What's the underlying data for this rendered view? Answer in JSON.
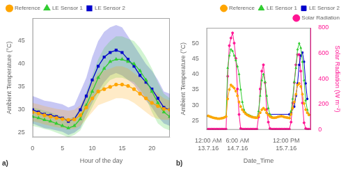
{
  "chart_data": [
    {
      "type": "line",
      "x": [
        0,
        1,
        2,
        3,
        4,
        5,
        6,
        7,
        8,
        9,
        10,
        11,
        12,
        13,
        14,
        15,
        16,
        17,
        18,
        19,
        20,
        21,
        22,
        23
      ],
      "series": [
        {
          "name": "Reference",
          "color": "#FFA500",
          "marker": "circle",
          "values": [
            29.5,
            29.2,
            28.8,
            28.5,
            28.2,
            28.0,
            27.8,
            27.9,
            28.8,
            30.5,
            32.5,
            34.0,
            34.5,
            35.0,
            35.5,
            35.5,
            35.2,
            34.5,
            33.5,
            32.5,
            31.5,
            30.8,
            30.2,
            30.0
          ],
          "p25": [
            27.5,
            27.2,
            26.8,
            26.5,
            26.2,
            26.0,
            25.8,
            25.8,
            26.5,
            28.0,
            29.5,
            31.0,
            31.5,
            32.0,
            32.5,
            32.5,
            32.2,
            31.5,
            30.5,
            29.5,
            28.5,
            28.0,
            27.8,
            27.8
          ],
          "p75": [
            31.5,
            31.2,
            30.8,
            30.5,
            30.2,
            30.0,
            29.8,
            30.0,
            31.0,
            33.5,
            36.0,
            38.0,
            38.5,
            39.0,
            39.5,
            39.5,
            39.0,
            38.0,
            37.0,
            36.0,
            34.5,
            33.5,
            32.5,
            32.0
          ]
        },
        {
          "name": "LE Sensor 1",
          "color": "#32CD32",
          "marker": "triangle",
          "values": [
            28.5,
            28.2,
            27.8,
            27.5,
            27.0,
            26.5,
            26.0,
            26.5,
            28.0,
            31.0,
            34.0,
            37.0,
            39.0,
            40.5,
            41.0,
            41.0,
            40.5,
            40.0,
            38.5,
            36.5,
            34.0,
            31.5,
            29.5,
            28.5
          ],
          "p25": [
            26.5,
            26.2,
            25.8,
            25.5,
            25.0,
            24.5,
            24.0,
            24.5,
            25.5,
            28.0,
            30.5,
            33.0,
            35.0,
            36.5,
            37.0,
            37.0,
            36.5,
            36.0,
            34.5,
            32.5,
            29.5,
            27.0,
            26.0,
            25.5
          ],
          "p75": [
            30.5,
            30.2,
            29.8,
            29.5,
            29.0,
            28.5,
            28.0,
            28.5,
            30.5,
            34.0,
            37.5,
            41.0,
            43.5,
            45.0,
            46.0,
            46.0,
            45.5,
            45.0,
            43.5,
            41.5,
            39.0,
            36.0,
            33.5,
            32.5
          ]
        },
        {
          "name": "LE Sensor 2",
          "color": "#0000CC",
          "marker": "square",
          "values": [
            30.0,
            29.5,
            29.0,
            28.8,
            28.5,
            28.2,
            27.5,
            28.0,
            30.0,
            33.0,
            36.5,
            39.5,
            41.5,
            42.5,
            43.0,
            42.5,
            41.0,
            39.5,
            37.5,
            36.0,
            34.5,
            32.5,
            30.5,
            30.0
          ],
          "p25": [
            27.0,
            26.5,
            26.0,
            25.8,
            25.5,
            25.2,
            24.5,
            25.0,
            26.0,
            29.0,
            31.5,
            34.0,
            36.0,
            37.5,
            38.0,
            37.5,
            36.5,
            35.5,
            33.5,
            32.0,
            30.5,
            28.5,
            27.0,
            26.5
          ],
          "p75": [
            33.0,
            32.5,
            32.0,
            31.8,
            31.5,
            31.2,
            30.5,
            31.0,
            34.0,
            37.0,
            41.5,
            45.0,
            47.0,
            48.0,
            48.5,
            48.0,
            46.0,
            44.0,
            42.0,
            40.0,
            38.5,
            36.5,
            34.0,
            33.5
          ]
        }
      ],
      "xlim": [
        0,
        23
      ],
      "xticks": [
        0,
        5,
        10,
        15,
        20
      ],
      "ylim": [
        24,
        50
      ],
      "yticks": [
        25,
        30,
        35,
        40,
        45
      ],
      "xlabel": "Hour of the day",
      "ylabel": "Ambient Temperature (°C)",
      "legend": "upper left",
      "grid": false,
      "annotations": [
        "a)"
      ]
    },
    {
      "type": "line",
      "x": [
        0,
        1,
        2,
        3,
        4,
        5,
        6,
        7,
        8,
        9,
        10,
        11,
        12,
        13,
        14,
        15,
        16,
        17,
        18,
        19,
        20,
        21,
        22,
        23,
        24,
        25,
        26,
        27,
        28,
        29,
        30,
        31,
        32,
        33,
        34,
        35,
        36,
        37,
        38,
        39,
        40,
        41,
        42,
        43,
        44,
        45,
        46,
        47,
        48,
        49,
        50,
        51,
        52,
        53,
        54,
        55,
        56,
        57,
        58,
        59,
        60,
        61,
        62
      ],
      "series": [
        {
          "name": "Reference",
          "color": "#FFA500",
          "marker": "circle",
          "values": [
            26.5,
            26.3,
            26.1,
            25.9,
            25.8,
            25.7,
            25.6,
            25.6,
            25.7,
            25.8,
            26.0,
            26.3,
            32.0,
            35.0,
            36.5,
            36.0,
            35.5,
            34.5,
            33.0,
            31.0,
            29.5,
            28.5,
            27.8,
            27.2,
            26.8,
            26.5,
            26.3,
            26.1,
            26.0,
            25.9,
            25.9,
            26.5,
            27.5,
            28.5,
            29.0,
            28.5,
            27.5,
            26.8,
            26.3,
            26.0,
            25.9,
            25.9,
            26.0,
            26.2,
            26.3,
            26.4,
            26.3,
            26.1,
            26.0,
            25.9,
            25.8,
            27.0,
            29.0,
            31.0,
            33.5,
            36.5,
            37.0,
            36.0,
            33.5,
            30.5,
            28.5,
            27.5,
            26.8
          ]
        },
        {
          "name": "LE Sensor 1",
          "color": "#32CD32",
          "marker": "triangle",
          "values": [
            26.5,
            26.3,
            26.1,
            25.9,
            25.8,
            25.7,
            25.6,
            25.6,
            25.7,
            25.8,
            26.0,
            26.3,
            42.0,
            46.0,
            48.0,
            47.5,
            46.0,
            44.5,
            42.5,
            40.0,
            35.0,
            31.0,
            28.5,
            27.5,
            27.0,
            26.8,
            26.5,
            26.3,
            26.1,
            26.0,
            25.9,
            28.0,
            33.0,
            38.0,
            40.0,
            37.5,
            33.0,
            29.0,
            27.0,
            26.3,
            25.9,
            25.9,
            26.0,
            26.2,
            26.3,
            26.4,
            26.3,
            26.1,
            26.0,
            25.9,
            25.8,
            28.0,
            32.0,
            37.5,
            42.0,
            48.0,
            50.0,
            48.5,
            44.0,
            38.0,
            31.5,
            28.5,
            27.0
          ]
        },
        {
          "name": "LE Sensor 2",
          "color": "#0000CC",
          "marker": "square",
          "x": [
            36,
            37,
            50,
            51,
            53,
            54,
            55,
            56,
            57,
            58,
            59,
            60,
            61
          ],
          "values": [
            27.5,
            27.0,
            27.0,
            27.5,
            29.5,
            33.0,
            37.0,
            43.0,
            46.0,
            47.0,
            44.0,
            37.0,
            32.0
          ]
        },
        {
          "name": "Solar Radiation",
          "color": "#FF1493",
          "marker": "circle",
          "axis": "y2",
          "values": [
            5,
            5,
            5,
            5,
            5,
            5,
            5,
            5,
            5,
            5,
            5,
            5,
            420,
            660,
            720,
            760,
            680,
            560,
            320,
            120,
            10,
            5,
            5,
            5,
            5,
            5,
            5,
            5,
            5,
            5,
            5,
            100,
            320,
            460,
            510,
            370,
            160,
            60,
            10,
            5,
            5,
            5,
            5,
            5,
            5,
            5,
            5,
            5,
            5,
            5,
            5,
            60,
            210,
            370,
            510,
            590,
            590,
            460,
            210,
            55,
            10,
            5,
            5
          ]
        }
      ],
      "xlim": [
        -1,
        63
      ],
      "xticks": [
        {
          "value": 0,
          "label": "12:00 AM\n13.7.16"
        },
        {
          "value": 18,
          "label": "6:00 AM\n14.7.16"
        },
        {
          "value": 48,
          "label": "12:00 PM\n15.7.16"
        }
      ],
      "ylim": [
        22,
        55
      ],
      "yticks": [
        25,
        30,
        35,
        40,
        45,
        50
      ],
      "y2lim": [
        0,
        800
      ],
      "y2ticks": [
        0,
        200,
        400,
        600,
        800
      ],
      "xlabel": "Date_Time",
      "ylabel": "Ambient Temperature (°C)",
      "y2label": "Solar Radiation (W m⁻²)",
      "legend": "upper right",
      "grid": false,
      "annotations": [
        "b)"
      ]
    }
  ]
}
